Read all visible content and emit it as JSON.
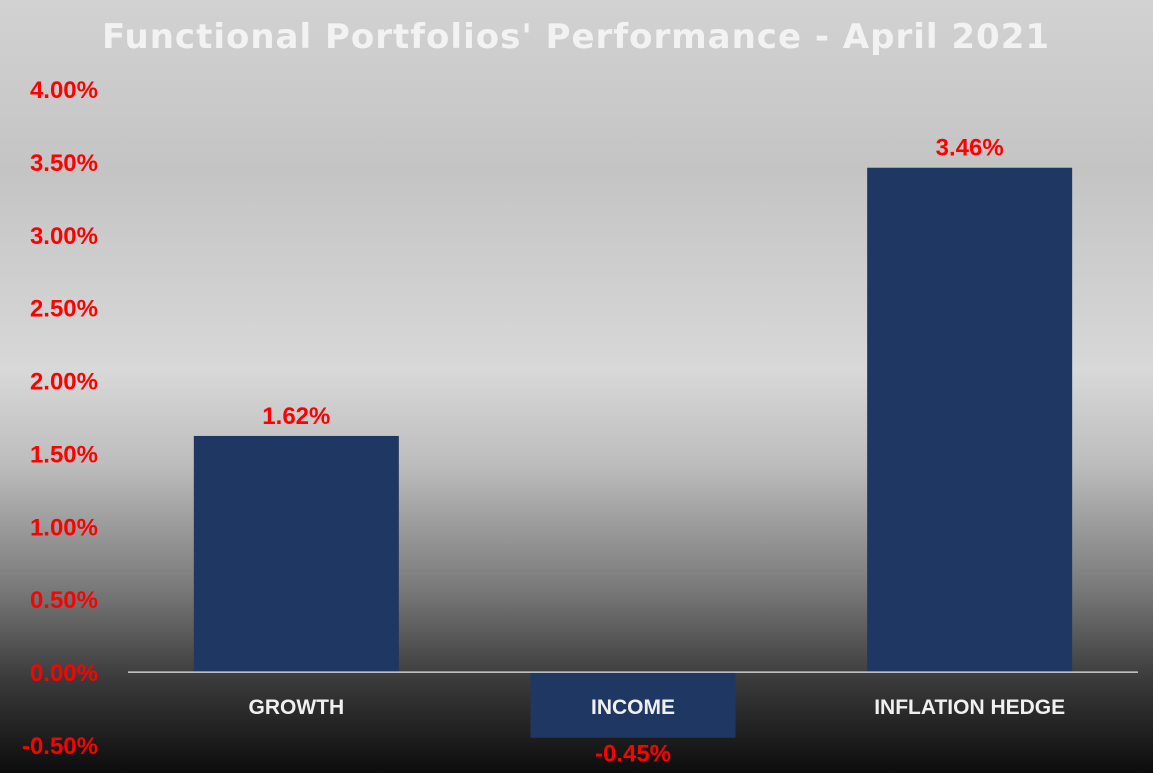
{
  "colors": {
    "bar": "#1f3763",
    "tick_text": "#ff0000",
    "data_label": "#ff0000",
    "category_text": "#f0f0f0",
    "title_text": "#f2f2f2",
    "baseline": "#e8e8e8"
  },
  "chart_data": {
    "type": "bar",
    "title": "Functional Portfolios' Performance - April 2021",
    "xlabel": "",
    "ylabel": "",
    "categories": [
      "GROWTH",
      "INCOME",
      "INFLATION HEDGE"
    ],
    "values": [
      1.62,
      -0.45,
      3.46
    ],
    "data_labels": [
      "1.62%",
      "-0.45%",
      "3.46%"
    ],
    "ylim": [
      -0.5,
      4.0
    ],
    "yticks": [
      -0.5,
      0.0,
      0.5,
      1.0,
      1.5,
      2.0,
      2.5,
      3.0,
      3.5,
      4.0
    ],
    "ytick_labels": [
      "-0.50%",
      "0.00%",
      "0.50%",
      "1.00%",
      "1.50%",
      "2.00%",
      "2.50%",
      "3.00%",
      "3.50%",
      "4.00%"
    ],
    "grid": false,
    "legend": "none"
  }
}
